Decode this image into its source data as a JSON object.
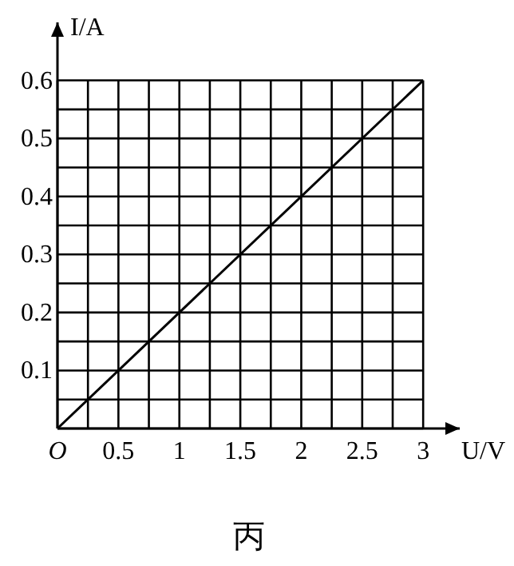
{
  "chart_data": {
    "type": "line",
    "xlabel": "U/V",
    "ylabel": "I/A",
    "x": [
      0,
      3
    ],
    "series": [
      {
        "color": "#000000",
        "values": [
          0,
          0.6
        ]
      }
    ],
    "xlim": [
      0,
      3.3
    ],
    "ylim": [
      0,
      0.7
    ],
    "xticks": [
      {
        "value": 0,
        "label": "O"
      },
      {
        "value": 0.25,
        "label": null
      },
      0.5,
      {
        "value": 0.75,
        "label": null
      },
      1,
      {
        "value": 1.25,
        "label": null
      },
      1.5,
      {
        "value": 1.75,
        "label": null
      },
      2,
      {
        "value": 2.25,
        "label": null
      },
      2.5,
      {
        "value": 2.75,
        "label": null
      },
      3
    ],
    "yticks": [
      {
        "value": 0,
        "label": null
      },
      {
        "value": 0.05,
        "label": null
      },
      0.1,
      {
        "value": 0.15,
        "label": null
      },
      0.2,
      {
        "value": 0.25,
        "label": null
      },
      0.3,
      {
        "value": 0.35,
        "label": null
      },
      0.4,
      {
        "value": 0.45,
        "label": null
      },
      0.5,
      {
        "value": 0.55,
        "label": null
      },
      0.6
    ],
    "grid": true,
    "marker": "none",
    "line_style": "solid",
    "annotations": [
      "丙"
    ]
  }
}
